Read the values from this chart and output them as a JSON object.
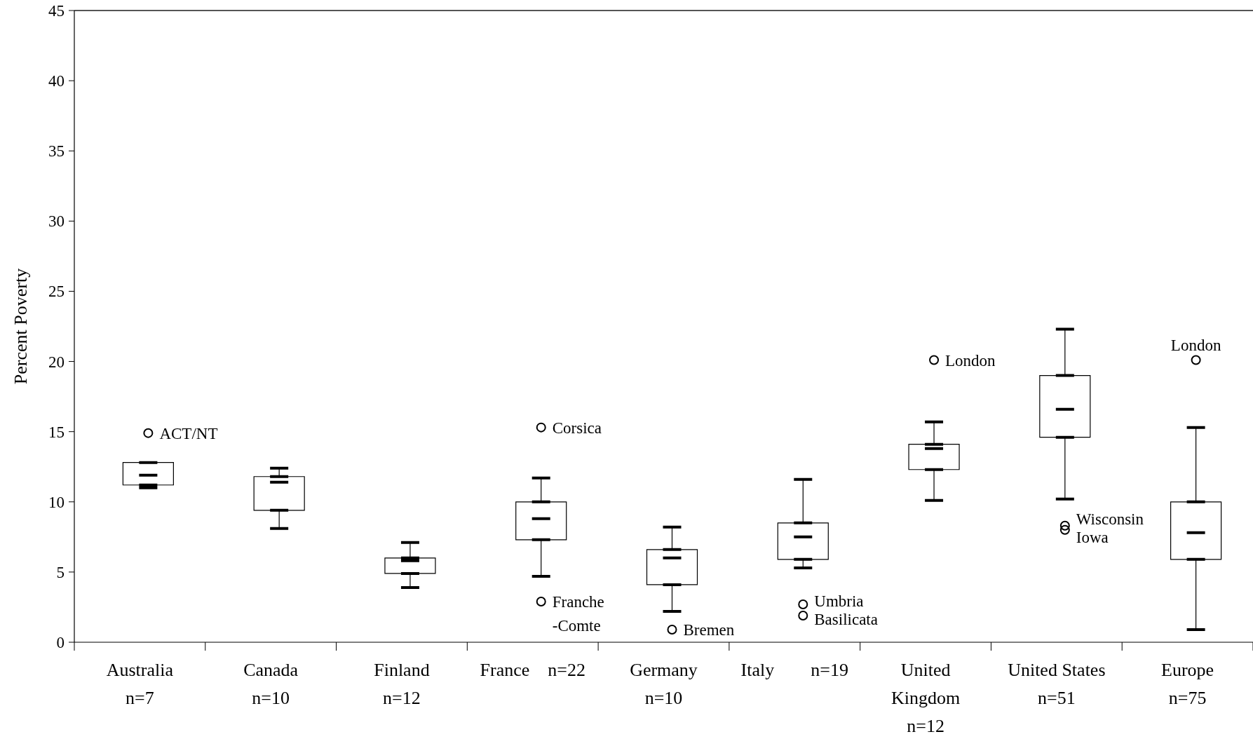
{
  "chart_data": {
    "type": "box",
    "ylabel": "Percent Poverty",
    "categories": [
      "Australia\nn=7",
      "Canada\nn=10",
      "Finland\nn=12",
      "France    n=22",
      "Germany\nn=10",
      "Italy        n=19",
      "United\nKingdom\nn=12",
      "United States\nn=51",
      "Europe\nn=75"
    ],
    "boxes": [
      {
        "low": 11.0,
        "q1": 11.2,
        "median": 11.9,
        "q3": 12.8,
        "high": 12.8,
        "outliers": [
          14.9
        ]
      },
      {
        "low": 8.1,
        "q1": 9.4,
        "median": 11.4,
        "q3": 11.8,
        "high": 12.4
      },
      {
        "low": 3.9,
        "q1": 4.9,
        "median": 5.8,
        "q3": 6.0,
        "high": 7.1
      },
      {
        "low": 4.7,
        "q1": 7.3,
        "median": 8.8,
        "q3": 10.0,
        "high": 11.7,
        "outliers": [
          15.3,
          2.9
        ]
      },
      {
        "low": 2.2,
        "q1": 4.1,
        "median": 6.0,
        "q3": 6.6,
        "high": 8.2,
        "outliers": [
          0.9
        ]
      },
      {
        "low": 5.3,
        "q1": 5.9,
        "median": 7.5,
        "q3": 8.5,
        "high": 11.6,
        "outliers": [
          2.7,
          1.9
        ]
      },
      {
        "low": 10.1,
        "q1": 12.3,
        "median": 13.8,
        "q3": 14.1,
        "high": 15.7,
        "outliers": [
          20.1
        ]
      },
      {
        "low": 10.2,
        "q1": 14.6,
        "median": 16.6,
        "q3": 19.0,
        "high": 22.3,
        "outliers": [
          8.3,
          8.0
        ]
      },
      {
        "low": 0.9,
        "q1": 5.9,
        "median": 7.8,
        "q3": 10.0,
        "high": 15.3,
        "outliers": [
          20.1
        ]
      }
    ],
    "annotations": [
      "ACT/NT",
      "Corsica",
      "Franche\n-Comte",
      "Bremen",
      "Umbria",
      "Basilicata",
      "London",
      "Wisconsin",
      "Iowa",
      "London"
    ],
    "ylim": [
      0,
      45
    ],
    "yticks": [
      0,
      5,
      10,
      15,
      20,
      25,
      30,
      35,
      40,
      45
    ],
    "grid": false
  }
}
